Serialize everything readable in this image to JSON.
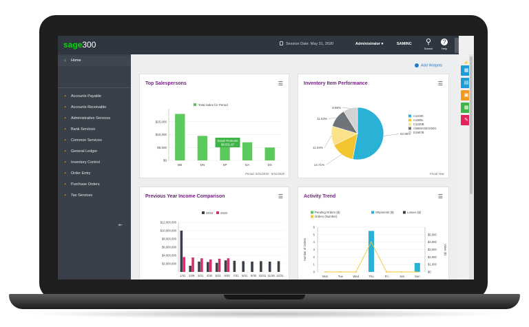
{
  "header": {
    "logo_brand": "sage",
    "logo_product": "300",
    "session_label": "Session Date: May 31, 2020",
    "user": "Administrator ▾",
    "company": "SAMINC",
    "search_label": "Search",
    "help_label": "Help",
    "tools_label": "Tools"
  },
  "sidebar": {
    "home": "Home",
    "items": [
      {
        "label": "Accounts Payable",
        "icon": "accounts-payable-icon"
      },
      {
        "label": "Accounts Receivable",
        "icon": "accounts-receivable-icon"
      },
      {
        "label": "Administrative Services",
        "icon": "admin-services-icon"
      },
      {
        "label": "Bank Services",
        "icon": "bank-icon"
      },
      {
        "label": "Common Services",
        "icon": "common-services-icon"
      },
      {
        "label": "General Ledger",
        "icon": "general-ledger-icon"
      },
      {
        "label": "Inventory Control",
        "icon": "inventory-icon"
      },
      {
        "label": "Order Entry",
        "icon": "order-entry-icon"
      },
      {
        "label": "Purchase Orders",
        "icon": "purchase-orders-icon"
      },
      {
        "label": "Tax Services",
        "icon": "tax-icon"
      }
    ]
  },
  "main": {
    "add_widgets": "Add Widgets"
  },
  "widgets": {
    "top_salespersons": {
      "title": "Top Salespersons",
      "tooltip_name": "Susan Promoter",
      "tooltip_value": "$8,531.97",
      "footer": "Period: 5/31/2019 - 5/31/2020"
    },
    "inventory": {
      "title": "Inventory Item Performance",
      "footer": "Fiscal Year"
    },
    "income": {
      "title": "Previous Year Income Comparison"
    },
    "activity": {
      "title": "Activity Trend"
    }
  },
  "colors": {
    "accent": "#6b1c7a",
    "green": "#5bc95b",
    "cyan": "#29b1d6",
    "yellow": "#f3c531",
    "pink": "#d6306c"
  },
  "chart_data": [
    {
      "type": "bar",
      "title": "Top Salespersons",
      "legend": [
        "Total Sales for Period"
      ],
      "categories": [
        "BB",
        "DN",
        "SP",
        "DA",
        "DS"
      ],
      "values": [
        18000,
        9500,
        8532,
        7000,
        5000
      ],
      "yticks": [
        "$15,000",
        "$10,000",
        "$5,000",
        "$0"
      ],
      "ylim": [
        0,
        20000
      ]
    },
    {
      "type": "pie",
      "title": "Inventory Item Performance",
      "labels": [
        "A11030",
        "A1900L",
        "C1220B",
        "A2BMAGE1030G",
        "D1907B"
      ],
      "values": [
        52.95,
        14.71,
        11.94,
        11.53,
        8.86
      ],
      "value_labels": [
        "52.95%",
        "14.71%",
        "11.94%",
        "11.53%",
        "8.86%"
      ],
      "colors": [
        "#29b1d6",
        "#f3c531",
        "#fbe28a",
        "#6e7477",
        "#d2d2d2"
      ]
    },
    {
      "type": "bar",
      "title": "Previous Year Income Comparison",
      "categories": [
        "1/31",
        "2/29",
        "3/31",
        "4/30",
        "5/31",
        "6/30",
        "7/31",
        "8/31",
        "9/30",
        "10/31",
        "11/30",
        "12/31"
      ],
      "series": [
        {
          "name": "2019",
          "values": [
            10000000,
            1500000,
            2500000,
            2400000,
            2200000,
            2800000,
            2700000,
            2600000,
            2500000,
            2600000,
            2500000,
            2600000
          ]
        },
        {
          "name": "2020",
          "values": [
            3600000,
            3500000,
            3300000,
            3000000,
            3200000,
            3300000,
            0,
            0,
            0,
            0,
            0,
            0
          ]
        }
      ],
      "yticks": [
        "$12,000,000",
        "$10,000,000",
        "$8,000,000",
        "$6,000,000",
        "$4,000,000",
        "$2,000,000"
      ],
      "ylim": [
        0,
        12000000
      ]
    },
    {
      "type": "bar",
      "title": "Activity Trend",
      "legend": [
        "Pending Orders ($)",
        "Shipments ($)",
        "Losses ($)",
        "Orders (Number)"
      ],
      "categories": [
        "Mon",
        "Tue",
        "Wed",
        "Thu",
        "Fri",
        "Sat",
        "Sun"
      ],
      "series": [
        {
          "name": "Shipments ($)",
          "values": [
            0,
            0,
            0,
            5500,
            0,
            0,
            1200
          ]
        },
        {
          "name": "Orders (Number)",
          "values": [
            0,
            0,
            0,
            4,
            0,
            0,
            0
          ]
        }
      ],
      "ylabel": "Number of Orders",
      "y2label": "Value ($)",
      "yticks": [
        "6",
        "5",
        "4",
        "3",
        "2",
        "1",
        "0"
      ],
      "y2ticks": [
        "$5,000",
        "$4,000",
        "$3,000",
        "$2,000",
        "$1,000",
        "$0"
      ],
      "ylim": [
        0,
        6
      ],
      "y2lim": [
        0,
        6000
      ]
    }
  ]
}
